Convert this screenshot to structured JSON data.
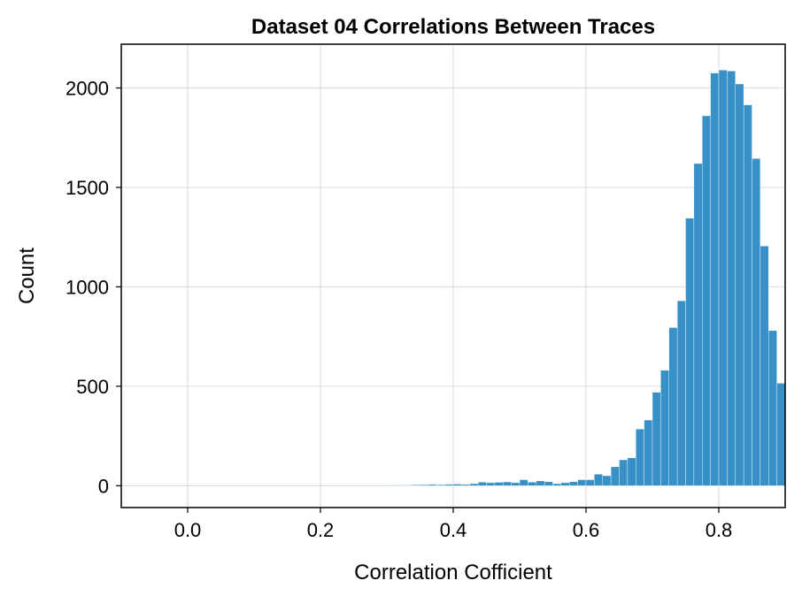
{
  "chart_data": {
    "type": "bar",
    "title": "Dataset 04 Correlations Between Traces",
    "xlabel": "Correlation Cofficient",
    "ylabel": "Count",
    "xlim": [
      -0.1,
      0.9
    ],
    "ylim": [
      -110,
      2220
    ],
    "xticks": [
      "0.0",
      "0.2",
      "0.4",
      "0.6",
      "0.8"
    ],
    "xtick_values": [
      0.0,
      0.2,
      0.4,
      0.6,
      0.8
    ],
    "yticks": [
      "0",
      "500",
      "1000",
      "1500",
      "2000"
    ],
    "ytick_values": [
      0,
      500,
      1000,
      1500,
      2000
    ],
    "grid": true,
    "bar_color": "#3790c6",
    "bin_width": 0.0125,
    "bin_starts": [
      0.3,
      0.3125,
      0.325,
      0.3375,
      0.35,
      0.3625,
      0.375,
      0.3875,
      0.4,
      0.4125,
      0.425,
      0.4375,
      0.45,
      0.4625,
      0.475,
      0.4875,
      0.5,
      0.5125,
      0.525,
      0.5375,
      0.55,
      0.5625,
      0.575,
      0.5875,
      0.6,
      0.6125,
      0.625,
      0.6375,
      0.65,
      0.6625,
      0.675,
      0.6875,
      0.7,
      0.7125,
      0.725,
      0.7375,
      0.75,
      0.7625,
      0.775,
      0.7875,
      0.8,
      0.8125,
      0.825,
      0.8375,
      0.85,
      0.8625,
      0.875,
      0.8875
    ],
    "values": [
      2,
      3,
      3,
      4,
      5,
      6,
      5,
      7,
      8,
      6,
      10,
      18,
      15,
      17,
      19,
      15,
      30,
      18,
      24,
      20,
      10,
      15,
      20,
      30,
      30,
      58,
      50,
      95,
      130,
      140,
      285,
      330,
      470,
      580,
      795,
      930,
      1345,
      1620,
      1860,
      2075,
      2090,
      2085,
      2020,
      1915,
      1645,
      1205,
      780,
      515
    ]
  }
}
